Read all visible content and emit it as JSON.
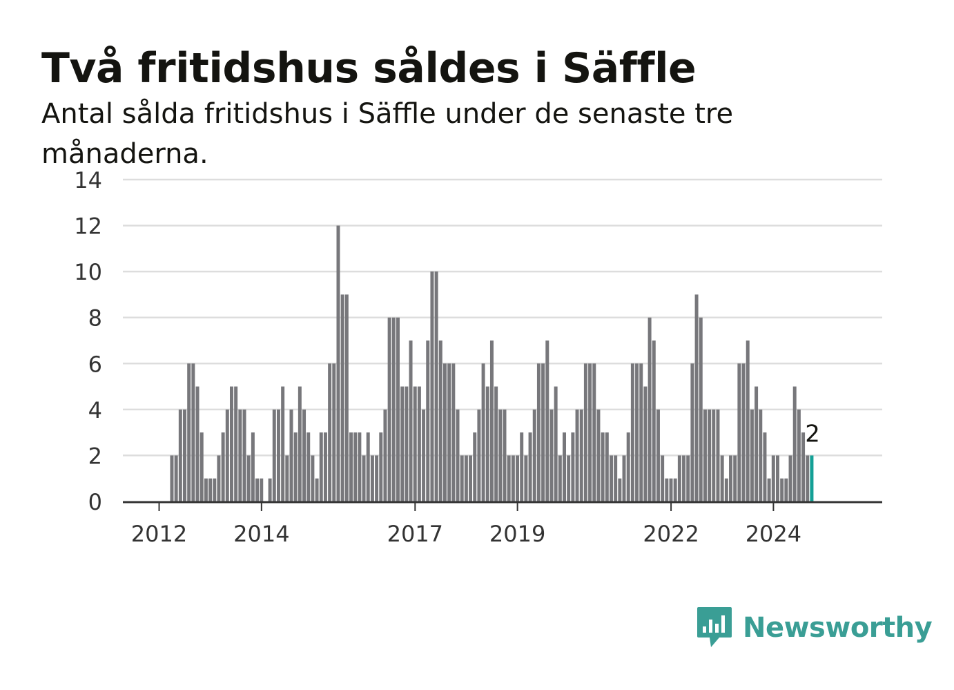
{
  "title": "Två fritidshus såldes i Säffle",
  "subtitle": "Antal sålda fritidshus i Säffle under de senaste tre månaderna.",
  "brand": {
    "name": "Newsworthy",
    "icon": "chart-speech-bubble-icon",
    "color": "#3a9e95"
  },
  "chart_data": {
    "type": "bar",
    "colors": {
      "bars": "#77777b",
      "highlight": "#14a096",
      "grid": "#dddddd",
      "axis": "#333333"
    },
    "ylim": [
      0,
      14
    ],
    "yticks": [
      0,
      2,
      4,
      6,
      8,
      10,
      12,
      14
    ],
    "xticks": [
      {
        "label": "2012",
        "month": 8
      },
      {
        "label": "2014",
        "month": 32
      },
      {
        "label": "2017",
        "month": 68
      },
      {
        "label": "2019",
        "month": 92
      },
      {
        "label": "2022",
        "month": 128
      },
      {
        "label": "2024",
        "month": 152
      }
    ],
    "x_start_month": 0,
    "x_end_month": 178,
    "highlight_label": "2",
    "values": [
      0,
      0,
      0,
      0,
      0,
      0,
      0,
      0,
      0,
      0,
      0,
      2,
      2,
      4,
      4,
      6,
      6,
      5,
      3,
      1,
      1,
      1,
      2,
      3,
      4,
      5,
      5,
      4,
      4,
      2,
      3,
      1,
      1,
      0,
      1,
      4,
      4,
      5,
      2,
      4,
      3,
      5,
      4,
      3,
      2,
      1,
      3,
      3,
      6,
      6,
      12,
      9,
      9,
      3,
      3,
      3,
      2,
      3,
      2,
      2,
      3,
      4,
      8,
      8,
      8,
      5,
      5,
      7,
      5,
      5,
      4,
      7,
      10,
      10,
      7,
      6,
      6,
      6,
      4,
      2,
      2,
      2,
      3,
      4,
      6,
      5,
      7,
      5,
      4,
      4,
      2,
      2,
      2,
      3,
      2,
      3,
      4,
      6,
      6,
      7,
      4,
      5,
      2,
      3,
      2,
      3,
      4,
      4,
      6,
      6,
      6,
      4,
      3,
      3,
      2,
      2,
      1,
      2,
      3,
      6,
      6,
      6,
      5,
      8,
      7,
      4,
      2,
      1,
      1,
      1,
      2,
      2,
      2,
      6,
      9,
      8,
      4,
      4,
      4,
      4,
      2,
      1,
      2,
      2,
      6,
      6,
      7,
      4,
      5,
      4,
      3,
      1,
      2,
      2,
      1,
      1,
      2,
      5,
      4,
      3,
      2,
      2
    ]
  }
}
